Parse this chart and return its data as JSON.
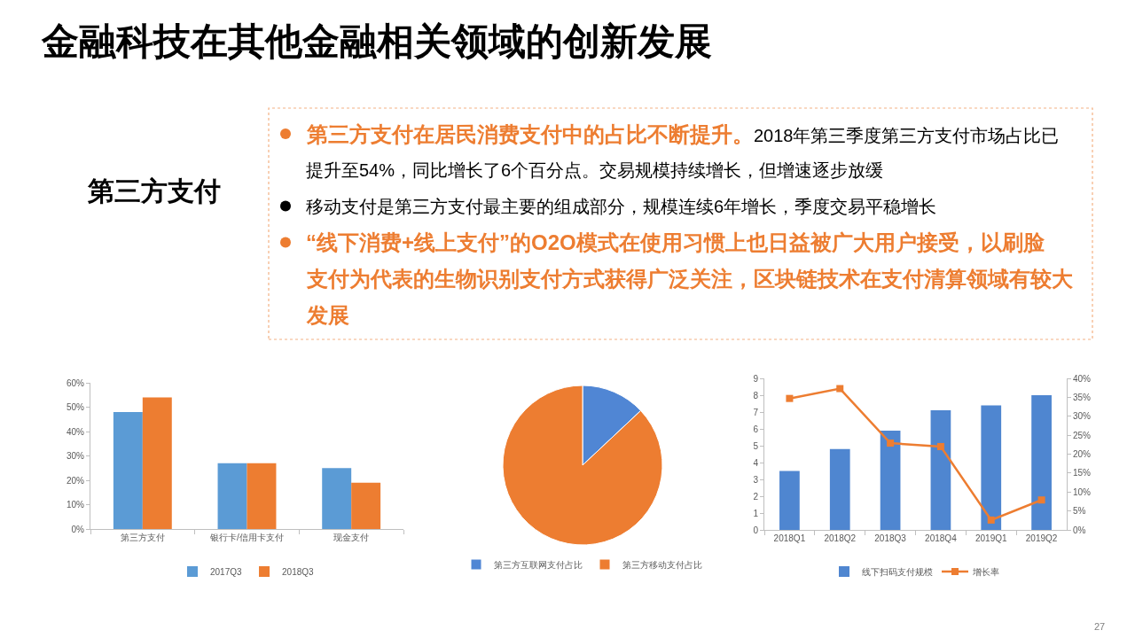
{
  "chart_data": [
    {
      "type": "other",
      "title": "金融科技在其他金融相关领域的创新发展",
      "subtitle": "第三方支付",
      "annotations": [
        "第三方支付在居民消费支付中的占比不断提升。",
        "2018年第三季度第三方支付市场占比已提升至54%，同比增长了6个百分点。交易规模持续增长，但增速逐步放缓",
        "移动支付是第三方支付最主要的组成部分，规模连续6年增长，季度交易平稳增长",
        "“线下消费+线上支付”的O2O模式在使用习惯上也日益被广大用户接受，以刷脸支付为代表的生物识别支付方式获得广泛关注，区块链技术在支付清算领域有较大发展",
        "27"
      ]
    },
    {
      "type": "bar",
      "categories": [
        "第三方支付",
        "银行卡/信用卡支付",
        "现金支付"
      ],
      "series": [
        {
          "name": "2017Q3",
          "color": "#5b9bd5",
          "values": [
            48,
            27,
            25
          ]
        },
        {
          "name": "2018Q3",
          "color": "#ed7d31",
          "values": [
            54,
            27,
            19
          ]
        }
      ],
      "ylim": [
        0,
        60
      ],
      "yticks": [
        {
          "value": 0,
          "label": "0%"
        },
        {
          "value": 10,
          "label": "10%"
        },
        {
          "value": 20,
          "label": "20%"
        },
        {
          "value": 30,
          "label": "30%"
        },
        {
          "value": 40,
          "label": "40%"
        },
        {
          "value": 50,
          "label": "50%"
        },
        {
          "value": 60,
          "label": "60%"
        }
      ],
      "legend": "bottom"
    },
    {
      "type": "pie",
      "categories": [
        "第三方互联网支付占比",
        "第三方移动支付占比"
      ],
      "values": [
        13,
        87
      ],
      "colors": [
        "#5086d4",
        "#ed7d31"
      ],
      "legend": "bottom"
    },
    {
      "type": "bar",
      "categories": [
        "2018Q1",
        "2018Q2",
        "2018Q3",
        "2018Q4",
        "2019Q1",
        "2019Q2"
      ],
      "series": [
        {
          "name": "线下扫码支付规模",
          "type": "bar",
          "color": "#4f86d0",
          "values": [
            3.5,
            4.8,
            5.9,
            7.1,
            7.4,
            8.0
          ]
        },
        {
          "name": "增长率",
          "type": "line",
          "axis": "y2",
          "color": "#ed7d31",
          "values": [
            34.7,
            37.3,
            22.9,
            22.0,
            2.6,
            7.9
          ]
        }
      ],
      "marker": "square",
      "ylim": [
        0,
        9
      ],
      "yticks": [
        0,
        1,
        2,
        3,
        4,
        5,
        6,
        7,
        8,
        9
      ],
      "y2lim": [
        0,
        40
      ],
      "y2ticks": [
        {
          "value": 0,
          "label": "0%"
        },
        {
          "value": 5,
          "label": "5%"
        },
        {
          "value": 10,
          "label": "10%"
        },
        {
          "value": 15,
          "label": "15%"
        },
        {
          "value": 20,
          "label": "20%"
        },
        {
          "value": 25,
          "label": "25%"
        },
        {
          "value": 30,
          "label": "30%"
        },
        {
          "value": 35,
          "label": "35%"
        },
        {
          "value": 40,
          "label": "40%"
        }
      ],
      "legend": "bottom"
    }
  ]
}
